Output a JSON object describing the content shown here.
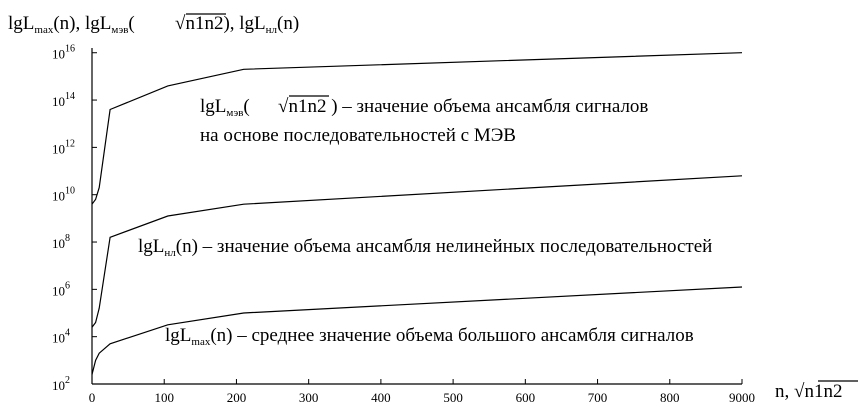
{
  "chart_data": {
    "type": "line",
    "title": "",
    "ylabel_parts": {
      "lg": "lgL",
      "max_sub": "max",
      "n": "(n), ",
      "mev_sub": "мэв",
      "open": "(",
      "sqrt_arg": "n1n2",
      "close": "), ",
      "nl_sub": "нл",
      "end": "(n)"
    },
    "xlabel_parts": {
      "n": "n, ",
      "sqrt_arg": "n1n2"
    },
    "x_ticks": [
      "0",
      "100",
      "200",
      "300",
      "400",
      "500",
      "600",
      "700",
      "800",
      "9000"
    ],
    "y_ticks": [
      {
        "base": "10",
        "exp": "2"
      },
      {
        "base": "10",
        "exp": "4"
      },
      {
        "base": "10",
        "exp": "6"
      },
      {
        "base": "10",
        "exp": "8"
      },
      {
        "base": "10",
        "exp": "10"
      },
      {
        "base": "10",
        "exp": "12"
      },
      {
        "base": "10",
        "exp": "14"
      },
      {
        "base": "10",
        "exp": "16"
      }
    ],
    "y_scale": "log",
    "ylim_exp": [
      2,
      16.2
    ],
    "xlim": [
      0,
      900
    ],
    "grid": false,
    "series": [
      {
        "x": [
          0,
          5,
          10,
          25,
          105,
          210,
          900
        ],
        "log10_y": [
          2.4,
          3.0,
          3.3,
          3.7,
          4.5,
          5.0,
          6.1
        ]
      },
      {
        "x": [
          0,
          5,
          10,
          25,
          105,
          210,
          900
        ],
        "log10_y": [
          4.4,
          4.6,
          5.2,
          8.2,
          9.1,
          9.6,
          10.8
        ]
      },
      {
        "x": [
          0,
          5,
          10,
          25,
          105,
          210,
          900
        ],
        "log10_y": [
          9.6,
          9.8,
          10.3,
          13.6,
          14.6,
          15.3,
          16.0
        ]
      }
    ],
    "annotations": {
      "mev_line1_lg": "lgL",
      "mev_line1_sub": "мэв",
      "mev_line1_open": "(",
      "mev_line1_sqrt_arg": "n1n2",
      "mev_line1_close": " ) – значение объема ансамбля сигналов",
      "mev_line2": "на основе последовательностей с МЭВ",
      "nl_lg": "lgL",
      "nl_sub": "нл",
      "nl_rest": "(n) – значение объема ансамбля нелинейных последовательностей",
      "max_lg": "lgL",
      "max_sub": "max",
      "max_rest": "(n) – среднее значение объема большого ансамбля сигналов"
    }
  }
}
